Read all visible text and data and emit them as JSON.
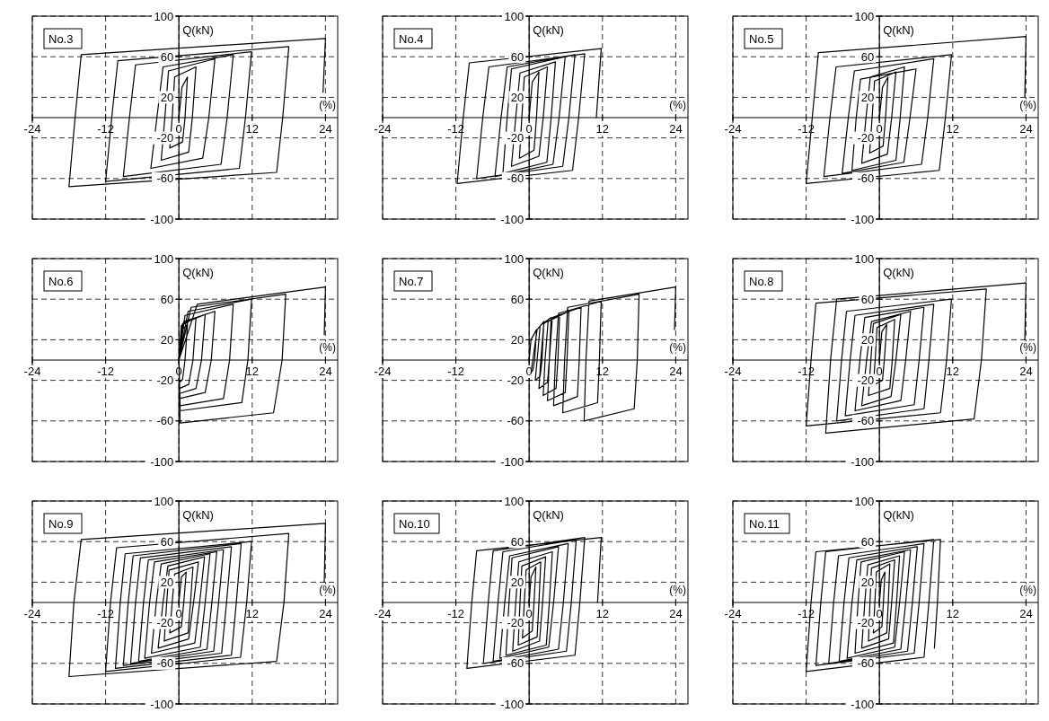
{
  "chart_data": [
    {
      "type": "line",
      "title": "No.3",
      "xlabel": "(%)",
      "ylabel": "Q(kN)",
      "xlim": [
        -24,
        26
      ],
      "ylim": [
        -100,
        100
      ],
      "xticks": [
        -24,
        -12,
        0,
        12,
        24
      ],
      "yticks": [
        -100,
        -60,
        -20,
        20,
        60,
        100
      ],
      "grid": true,
      "series": [
        {
          "color": "#000000",
          "x": [
            0,
            0.5,
            1.4,
            1.0,
            0.6,
            -1.5,
            -1.1,
            -0.7,
            2.8,
            2.2,
            1.6,
            -2.9,
            -2.3,
            -1.7,
            5.9,
            4.9,
            3.9,
            -4.6,
            -3.6,
            -2.6,
            8.9,
            7.9,
            6.9,
            -9.1,
            -8.1,
            -7.1,
            11.9,
            10.9,
            9.9,
            -12,
            -11,
            -10,
            18,
            17,
            16,
            -18,
            -17,
            -16,
            24,
            23.6
          ],
          "values": [
            0,
            30,
            40,
            0,
            -24,
            -30,
            0,
            40,
            50,
            0,
            -34,
            -42,
            0,
            46,
            58,
            0,
            -40,
            -50,
            0,
            50,
            62,
            0,
            -46,
            -58,
            0,
            52,
            65,
            0,
            -50,
            -63,
            0,
            56,
            70,
            0,
            -54,
            -68,
            0,
            62,
            78,
            25
          ]
        }
      ]
    },
    {
      "type": "line",
      "title": "No.4",
      "xlabel": "(%)",
      "ylabel": "Q(kN)",
      "xlim": [
        -24,
        26
      ],
      "ylim": [
        -100,
        100
      ],
      "xticks": [
        -24,
        -12,
        0,
        12,
        24
      ],
      "yticks": [
        -100,
        -60,
        -20,
        20,
        60,
        100
      ],
      "grid": true,
      "series": [
        {
          "color": "#000000",
          "x": [
            0,
            0.5,
            1.6,
            1.2,
            0.8,
            -1.6,
            -1.2,
            -0.8,
            3,
            2.3,
            1.6,
            -2.9,
            -2.2,
            -1.5,
            4.3,
            3.6,
            2.9,
            -4.3,
            -3.6,
            -2.9,
            5.9,
            4.9,
            3.9,
            -5.6,
            -4.6,
            -3.6,
            7.5,
            6.5,
            5.5,
            -8.6,
            -7.6,
            -6.6,
            9.1,
            8.1,
            7.1,
            -11.8,
            -10.8,
            -9.8,
            11.8,
            11.0
          ],
          "values": [
            0,
            35,
            45,
            0,
            -32,
            -40,
            0,
            40,
            50,
            0,
            -38,
            -48,
            0,
            44,
            55,
            0,
            -44,
            -55,
            0,
            48,
            60,
            0,
            -46,
            -58,
            0,
            50,
            62,
            0,
            -48,
            -60,
            0,
            50,
            63,
            0,
            -52,
            -65,
            0,
            54,
            68,
            0
          ]
        }
      ]
    },
    {
      "type": "line",
      "title": "No.5",
      "xlabel": "(%)",
      "ylabel": "Q(kN)",
      "xlim": [
        -24,
        26
      ],
      "ylim": [
        -100,
        100
      ],
      "xticks": [
        -24,
        -12,
        0,
        12,
        24
      ],
      "yticks": [
        -100,
        -60,
        -20,
        20,
        60,
        100
      ],
      "grid": true,
      "series": [
        {
          "color": "#000000",
          "x": [
            0,
            0.5,
            1.4,
            1.0,
            0.6,
            -1.6,
            -1.2,
            -0.8,
            2.7,
            2.0,
            1.3,
            -2.9,
            -2.2,
            -1.5,
            4.1,
            3.4,
            2.7,
            -4.5,
            -3.8,
            -3.1,
            6.0,
            5.0,
            4.0,
            -6.1,
            -5.1,
            -4.1,
            8.9,
            7.9,
            6.9,
            -9.1,
            -8.1,
            -7.1,
            11.8,
            10.8,
            9.8,
            -12,
            -11,
            -10,
            24,
            23.8
          ],
          "values": [
            0,
            30,
            40,
            0,
            -28,
            -35,
            0,
            36,
            45,
            0,
            -36,
            -45,
            0,
            40,
            50,
            0,
            -42,
            -52,
            0,
            38,
            48,
            0,
            -44,
            -55,
            0,
            46,
            58,
            0,
            -46,
            -58,
            0,
            50,
            62,
            0,
            -52,
            -65,
            0,
            64,
            80,
            20
          ]
        }
      ]
    },
    {
      "type": "line",
      "title": "No.6",
      "xlabel": "(%)",
      "ylabel": "Q(kN)",
      "xlim": [
        -24,
        26
      ],
      "ylim": [
        -100,
        100
      ],
      "xticks": [
        -24,
        -12,
        0,
        12,
        24
      ],
      "yticks": [
        -100,
        -60,
        -20,
        20,
        60,
        100
      ],
      "grid": true,
      "series": [
        {
          "color": "#000000",
          "x": [
            0,
            0.5,
            1.4,
            1.0,
            0.6,
            0.1,
            0,
            0.4,
            2.8,
            2.3,
            1.6,
            0.1,
            0,
            0.6,
            4.3,
            3.7,
            2.8,
            0.1,
            0,
            0.8,
            5.9,
            5.3,
            4.3,
            0.1,
            0,
            1.0,
            8.9,
            8.3,
            7.3,
            0.2,
            0,
            1.5,
            11.9,
            11.3,
            10.3,
            0.2,
            0,
            2.0,
            17.5,
            16.9,
            15.5,
            0.2,
            0,
            3.0,
            24,
            23.8
          ],
          "values": [
            0,
            30,
            35,
            0,
            -19,
            -22,
            0,
            34,
            42,
            0,
            -24,
            -28,
            0,
            36,
            45,
            0,
            -28,
            -33,
            0,
            38,
            48,
            0,
            -32,
            -38,
            0,
            44,
            55,
            0,
            -38,
            -45,
            0,
            48,
            60,
            0,
            -42,
            -50,
            0,
            52,
            65,
            0,
            -52,
            -62,
            0,
            55,
            72,
            25
          ]
        }
      ]
    },
    {
      "type": "line",
      "title": "No.7",
      "xlabel": "(%)",
      "ylabel": "Q(kN)",
      "xlim": [
        -24,
        26
      ],
      "ylim": [
        -100,
        100
      ],
      "xticks": [
        -24,
        -12,
        0,
        12,
        24
      ],
      "yticks": [
        -100,
        -60,
        -20,
        20,
        60,
        100
      ],
      "grid": true,
      "series": [
        {
          "color": "#000000",
          "x": [
            0,
            0.3,
            1.2,
            0.9,
            0.6,
            0.3,
            0.6,
            1.3,
            2.4,
            2.1,
            1.8,
            1.0,
            1.3,
            1.8,
            3.6,
            3.3,
            3.0,
            1.6,
            1.9,
            2.4,
            5.0,
            4.7,
            4.4,
            2.3,
            2.6,
            3.1,
            6.5,
            6.2,
            5.9,
            3.0,
            3.3,
            3.8,
            8.5,
            8.2,
            7.9,
            4.0,
            4.3,
            4.8,
            11.8,
            11.5,
            11.2,
            5.5,
            5.8,
            6.3,
            18,
            17.7,
            17.2,
            9.0,
            9.3,
            9.8,
            24,
            23.8
          ],
          "values": [
            0,
            20,
            30,
            0,
            -10,
            -12,
            0,
            30,
            38,
            0,
            -16,
            -20,
            0,
            34,
            42,
            0,
            -22,
            -28,
            0,
            36,
            45,
            0,
            -28,
            -35,
            0,
            38,
            48,
            0,
            -32,
            -40,
            0,
            42,
            52,
            0,
            -36,
            -45,
            0,
            46,
            58,
            0,
            -42,
            -52,
            0,
            52,
            65,
            0,
            -48,
            -60,
            0,
            58,
            72,
            30
          ]
        }
      ]
    },
    {
      "type": "line",
      "title": "No.8",
      "xlabel": "(%)",
      "ylabel": "Q(kN)",
      "xlim": [
        -24,
        26
      ],
      "ylim": [
        -100,
        100
      ],
      "xticks": [
        -24,
        -12,
        0,
        12,
        24
      ],
      "yticks": [
        -100,
        -60,
        -20,
        20,
        60,
        100
      ],
      "grid": true,
      "series": [
        {
          "color": "#000000",
          "x": [
            0,
            0.4,
            1.2,
            0.8,
            0.5,
            -1.0,
            -0.7,
            -0.4,
            2.5,
            2.1,
            1.7,
            -1.8,
            -1.4,
            -1.0,
            3.5,
            2.7,
            1.9,
            -2.9,
            -2.1,
            -1.3,
            5.1,
            4.3,
            3.5,
            -4.0,
            -3.2,
            -2.4,
            7.3,
            6.5,
            5.7,
            -5.6,
            -4.8,
            -4.0,
            8.9,
            8.1,
            7.3,
            -7.0,
            -6.2,
            -5.4,
            11.8,
            11.0,
            10.0,
            -12,
            -11.2,
            -10.4,
            17.5,
            16.7,
            15.5,
            -8.8,
            -8.0,
            -7.0,
            24,
            23.8
          ],
          "values": [
            0,
            28,
            35,
            0,
            -20,
            -25,
            0,
            32,
            40,
            0,
            -28,
            -35,
            0,
            36,
            45,
            0,
            -36,
            -45,
            0,
            38,
            48,
            0,
            -40,
            -50,
            0,
            42,
            52,
            0,
            -44,
            -55,
            0,
            44,
            55,
            0,
            -48,
            -60,
            0,
            48,
            60,
            0,
            -52,
            -65,
            0,
            56,
            70,
            0,
            -58,
            -72,
            0,
            60,
            76,
            20
          ]
        }
      ]
    },
    {
      "type": "line",
      "title": "No.9",
      "xlabel": "(%)",
      "ylabel": "Q(kN)",
      "xlim": [
        -24,
        26
      ],
      "ylim": [
        -100,
        100
      ],
      "xticks": [
        -24,
        -12,
        0,
        12,
        24
      ],
      "yticks": [
        -100,
        -60,
        -20,
        20,
        60,
        100
      ],
      "grid": true,
      "series": [
        {
          "color": "#000000",
          "x": [
            0,
            0.4,
            1.2,
            0.8,
            0.4,
            -1.5,
            -1.1,
            -0.7,
            2.3,
            1.9,
            1.5,
            -2.4,
            -2.0,
            -1.6,
            3.2,
            2.4,
            1.6,
            -3.4,
            -2.6,
            -1.8,
            4.2,
            3.4,
            2.6,
            -4.5,
            -3.7,
            -2.9,
            5.1,
            4.3,
            3.5,
            -5.6,
            -4.8,
            -4.0,
            6.2,
            5.4,
            4.6,
            -6.6,
            -5.8,
            -5.0,
            7.3,
            6.5,
            5.7,
            -7.9,
            -7.1,
            -6.3,
            8.6,
            7.8,
            7.0,
            -9.1,
            -8.3,
            -7.5,
            10.2,
            9.4,
            8.6,
            -10.4,
            -9.6,
            -8.8,
            11.9,
            11.1,
            10.1,
            -12,
            -11.2,
            -10.2,
            18,
            17.2,
            16,
            -18,
            -17.2,
            -16,
            24,
            23.8
          ],
          "values": [
            0,
            25,
            30,
            0,
            -24,
            -30,
            0,
            28,
            35,
            0,
            -30,
            -38,
            0,
            32,
            40,
            0,
            -36,
            -45,
            0,
            36,
            45,
            0,
            -40,
            -50,
            0,
            38,
            48,
            0,
            -44,
            -55,
            0,
            40,
            50,
            0,
            -46,
            -58,
            0,
            42,
            52,
            0,
            -48,
            -60,
            0,
            44,
            55,
            0,
            -50,
            -62,
            0,
            46,
            58,
            0,
            -52,
            -65,
            0,
            48,
            60,
            0,
            -54,
            -68,
            0,
            54,
            68,
            0,
            -58,
            -73,
            0,
            62,
            78,
            20
          ]
        }
      ]
    },
    {
      "type": "line",
      "title": "No.10",
      "xlabel": "(%)",
      "ylabel": "Q(kN)",
      "xlim": [
        -24,
        26
      ],
      "ylim": [
        -100,
        100
      ],
      "xticks": [
        -24,
        -12,
        0,
        12,
        24
      ],
      "yticks": [
        -100,
        -60,
        -20,
        20,
        60,
        100
      ],
      "grid": true,
      "series": [
        {
          "color": "#000000",
          "x": [
            0,
            0.3,
            1.1,
            0.8,
            0.5,
            -1.1,
            -0.8,
            -0.5,
            1.9,
            1.6,
            1.3,
            -1.8,
            -1.5,
            -1.2,
            2.7,
            2.2,
            1.7,
            -2.7,
            -2.2,
            -1.7,
            3.8,
            3.3,
            2.8,
            -3.8,
            -3.3,
            -2.8,
            4.8,
            4.0,
            3.2,
            -4.8,
            -4.0,
            -3.2,
            6.4,
            5.6,
            4.8,
            -5.9,
            -5.1,
            -4.3,
            7.7,
            6.9,
            6.1,
            -7.5,
            -6.7,
            -5.9,
            9.1,
            8.3,
            7.5,
            -10.2,
            -9.4,
            -8.6,
            11.8,
            11.2
          ],
          "values": [
            0,
            25,
            35,
            0,
            -28,
            -35,
            0,
            32,
            40,
            0,
            -34,
            -42,
            0,
            36,
            45,
            0,
            -38,
            -48,
            0,
            40,
            50,
            0,
            -42,
            -52,
            0,
            44,
            55,
            0,
            -44,
            -55,
            0,
            46,
            58,
            0,
            -46,
            -58,
            0,
            50,
            62,
            0,
            -48,
            -60,
            0,
            51,
            64,
            0,
            -52,
            -65,
            0,
            51,
            64,
            0
          ]
        }
      ]
    },
    {
      "type": "line",
      "title": "No.11",
      "xlabel": "(%)",
      "ylabel": "Q(kN)",
      "xlim": [
        -24,
        26
      ],
      "ylim": [
        -100,
        100
      ],
      "xticks": [
        -24,
        -12,
        0,
        12,
        24
      ],
      "yticks": [
        -100,
        -60,
        -20,
        20,
        60,
        100
      ],
      "grid": true,
      "series": [
        {
          "color": "#000000",
          "x": [
            0,
            0.3,
            0.9,
            0.65,
            0.4,
            -1.0,
            -0.75,
            -0.5,
            1.7,
            1.45,
            1.2,
            -1.8,
            -1.55,
            -1.3,
            2.5,
            2.0,
            1.5,
            -2.9,
            -2.4,
            -1.9,
            3.3,
            2.8,
            2.3,
            -4.0,
            -3.5,
            -3.0,
            4.1,
            3.3,
            2.5,
            -5.3,
            -4.5,
            -3.7,
            5.1,
            4.3,
            3.5,
            -6.6,
            -5.8,
            -5.0,
            6.2,
            5.4,
            4.6,
            -8.3,
            -7.5,
            -6.7,
            7.3,
            6.5,
            5.7,
            -10.4,
            -9.6,
            -8.8,
            8.9,
            8.1,
            7.3,
            -12,
            -11.2,
            -10.4,
            10,
            9.5,
            9.0
          ],
          "values": [
            0,
            22,
            30,
            0,
            -24,
            -30,
            0,
            30,
            38,
            0,
            -30,
            -38,
            0,
            34,
            42,
            0,
            -36,
            -45,
            0,
            37,
            46,
            0,
            -40,
            -50,
            0,
            40,
            50,
            0,
            -44,
            -55,
            0,
            42,
            52,
            0,
            -46,
            -58,
            0,
            44,
            55,
            0,
            -48,
            -60,
            0,
            46,
            58,
            0,
            -50,
            -62,
            0,
            50,
            62,
            0,
            -54,
            -68,
            0,
            50,
            62,
            0,
            -45
          ]
        }
      ]
    }
  ]
}
